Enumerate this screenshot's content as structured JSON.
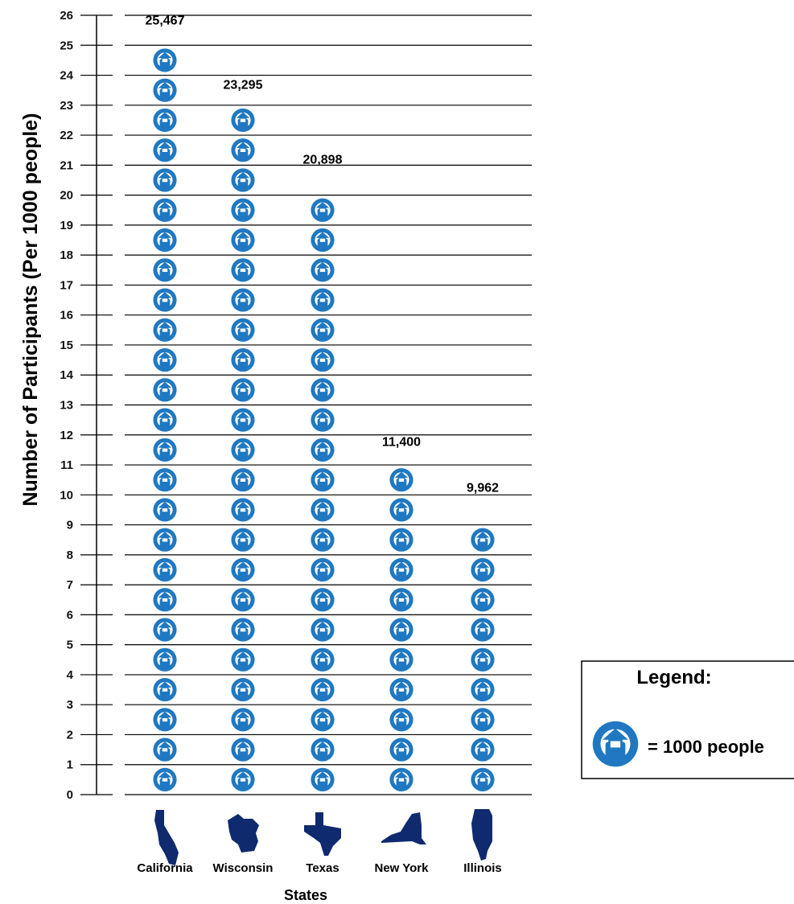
{
  "chart_data": {
    "type": "pictograph",
    "ylabel": "Number of Participants (Per 1000 people)",
    "xlabel": "States",
    "ylim": [
      0,
      26
    ],
    "yticks": [
      0,
      1,
      2,
      3,
      4,
      5,
      6,
      7,
      8,
      9,
      10,
      11,
      12,
      13,
      14,
      15,
      16,
      17,
      18,
      19,
      20,
      21,
      22,
      23,
      24,
      25,
      26
    ],
    "categories": [
      "California",
      "Wisconsin",
      "Texas",
      "New York",
      "Illinois"
    ],
    "values": [
      25467,
      23295,
      20898,
      11400,
      9962
    ],
    "value_labels": [
      "25,467",
      "23,295",
      "20,898",
      "11,400",
      "9,962"
    ],
    "units_per_icon": 1000,
    "grid": true,
    "legend": {
      "position": "right",
      "title": "Legend:",
      "text": "= 1000 people"
    },
    "colors": {
      "icon": "#1f78c1",
      "state_shape": "#0f2a6e",
      "grid": "#000000"
    }
  }
}
